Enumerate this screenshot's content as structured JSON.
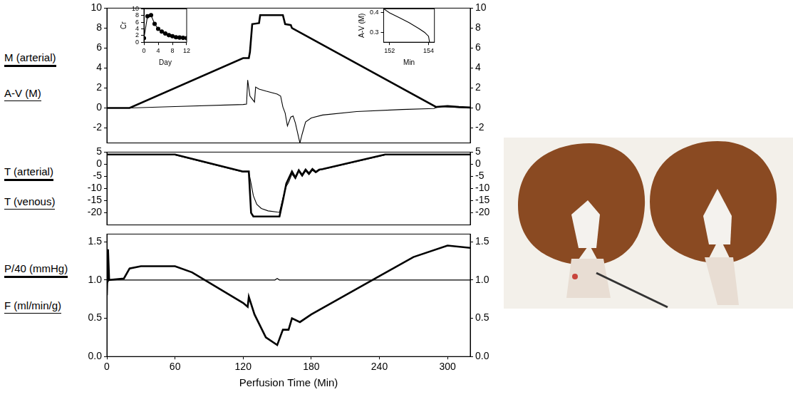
{
  "chart_data": [
    {
      "type": "line",
      "legend": "left",
      "grid": false,
      "tick_labels": "y",
      "xlim": [
        0,
        320
      ],
      "ylim": [
        -3.5,
        10
      ],
      "yticks": [
        -2,
        0,
        2,
        4,
        6,
        8,
        10
      ],
      "series": [
        {
          "name": "M (arterial)",
          "color": "#000000",
          "line_style": "thick",
          "x": [
            0,
            20,
            120,
            125,
            126,
            128,
            134,
            135,
            155,
            157,
            162,
            163,
            290,
            300,
            310,
            320
          ],
          "values": [
            0,
            0,
            5,
            5,
            5.6,
            8.4,
            8.5,
            9.3,
            9.3,
            8.4,
            8.3,
            8.0,
            0.1,
            0.2,
            0.1,
            0.05
          ]
        },
        {
          "name": "A-V (M)",
          "color": "#000000",
          "line_style": "thin",
          "x": [
            0,
            20,
            60,
            120,
            123,
            124,
            126,
            130,
            131,
            134,
            140,
            150,
            153,
            155,
            157,
            159,
            162,
            164,
            166,
            168,
            170,
            172,
            175,
            180,
            190,
            220,
            260,
            288,
            292,
            300,
            320
          ],
          "values": [
            0,
            0,
            0.15,
            0.35,
            0.4,
            2.8,
            1.2,
            0.6,
            2.1,
            1.9,
            1.7,
            1.4,
            1.2,
            0.1,
            -0.5,
            -1.8,
            -0.9,
            -0.8,
            -1.5,
            -2.5,
            -3.5,
            -2.6,
            -1.4,
            -1.0,
            -0.7,
            -0.35,
            -0.15,
            -0.05,
            0.15,
            0.1,
            0.0
          ]
        }
      ]
    },
    {
      "type": "line",
      "legend": "left",
      "grid": false,
      "tick_labels": "y",
      "xlim": [
        0,
        320
      ],
      "ylim": [
        -25,
        5
      ],
      "yticks": [
        -20,
        -15,
        -10,
        -5,
        0,
        5
      ],
      "series": [
        {
          "name": "T (arterial)",
          "color": "#000000",
          "line_style": "thick",
          "x": [
            0,
            60,
            120,
            125,
            127,
            129,
            152,
            155,
            158,
            160,
            163,
            166,
            169,
            172,
            175,
            178,
            181,
            184,
            187,
            190,
            245,
            320
          ],
          "values": [
            4,
            4,
            -3,
            -3,
            -20,
            -21.5,
            -21.5,
            -15,
            -8,
            -6,
            -3,
            -5.5,
            -2.5,
            -4.5,
            -2.2,
            -3.8,
            -2,
            -3.2,
            -2.2,
            -2,
            4,
            4
          ]
        },
        {
          "name": "T (venous)",
          "color": "#000000",
          "line_style": "thin",
          "x": [
            0,
            60,
            120,
            125,
            127,
            129,
            132,
            136,
            142,
            150,
            152,
            155,
            158,
            160,
            163,
            166,
            169,
            172,
            175,
            178,
            181,
            184,
            188,
            190,
            245,
            320
          ],
          "values": [
            3.8,
            3.8,
            -3.2,
            -3.2,
            -8,
            -13,
            -16.5,
            -18.2,
            -19.2,
            -19.7,
            -19.8,
            -14,
            -9,
            -7.5,
            -4,
            -6,
            -3,
            -5,
            -2.8,
            -4.3,
            -2.5,
            -3.5,
            -2.2,
            -2.1,
            3.8,
            3.8
          ]
        }
      ]
    },
    {
      "type": "line",
      "legend": "left",
      "grid": false,
      "x_label": "Perfusion Time (Min)",
      "xlim": [
        0,
        320
      ],
      "xticks": [
        0,
        60,
        120,
        180,
        240,
        300
      ],
      "ylim": [
        0,
        1.6
      ],
      "yticks": [
        {
          "value": 0,
          "label": "0.0"
        },
        {
          "value": 0.5,
          "label": "0.5"
        },
        {
          "value": 1,
          "label": "1.0"
        },
        {
          "value": 1.5,
          "label": "1.5"
        }
      ],
      "series": [
        {
          "name": "P/40 (mmHg)",
          "color": "#000000",
          "line_style": "thick",
          "x": [
            0,
            1,
            2,
            15,
            20,
            30,
            60,
            75,
            120,
            124,
            125,
            130,
            140,
            150,
            155,
            160,
            163,
            170,
            180,
            240,
            270,
            300,
            320
          ],
          "values": [
            0.8,
            1.4,
            1.0,
            1.02,
            1.15,
            1.18,
            1.18,
            1.1,
            0.7,
            0.65,
            0.78,
            0.55,
            0.25,
            0.15,
            0.35,
            0.35,
            0.5,
            0.45,
            0.55,
            1.05,
            1.3,
            1.45,
            1.42
          ]
        },
        {
          "name": "F (ml/min/g)",
          "color": "#000000",
          "line_style": "thin",
          "x": [
            0,
            2,
            148,
            150,
            152,
            320
          ],
          "values": [
            0.95,
            1.0,
            1.0,
            1.02,
            1.0,
            1.0
          ]
        }
      ]
    },
    {
      "type": "line",
      "grid": false,
      "x_label": "Day",
      "y_label": "Cr",
      "xlim": [
        0,
        12
      ],
      "xticks": [
        0,
        4,
        8,
        12
      ],
      "ylim": [
        0,
        10
      ],
      "yticks": [
        0,
        2,
        4,
        6,
        8,
        10
      ],
      "series": [
        {
          "color": "#000000",
          "line_style": "thin",
          "marker": "circle",
          "x": [
            0,
            1,
            2,
            3,
            4,
            5,
            6,
            7,
            8,
            9,
            10,
            11,
            12
          ],
          "values": [
            1.2,
            7.8,
            8.1,
            5.5,
            4.0,
            3.2,
            2.6,
            2.1,
            1.8,
            1.5,
            1.4,
            1.3,
            1.2
          ]
        }
      ]
    },
    {
      "type": "line",
      "grid": false,
      "x_label": "Min",
      "y_label": "A-V (M)",
      "xlim": [
        151.7,
        154.3
      ],
      "xticks": [
        152,
        154
      ],
      "ylim": [
        0.25,
        0.42
      ],
      "yticks": [
        0.3,
        0.4
      ],
      "series": [
        {
          "color": "#000000",
          "line_style": "thin",
          "x": [
            151.7,
            152,
            152.5,
            153,
            153.5,
            153.8,
            154,
            154.05
          ],
          "values": [
            0.42,
            0.4,
            0.375,
            0.35,
            0.32,
            0.3,
            0.28,
            0.25
          ]
        }
      ]
    }
  ]
}
